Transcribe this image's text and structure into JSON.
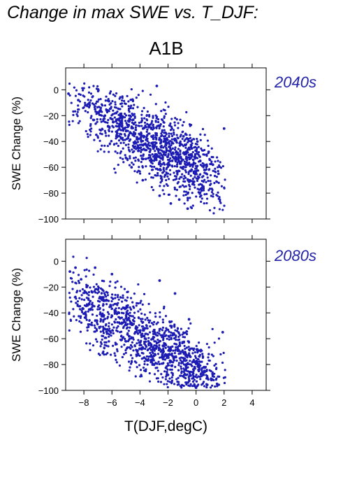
{
  "figure": {
    "title": "Change in max SWE vs. T_DJF:",
    "scenario": "A1B"
  },
  "colors": {
    "points": "#1c1cb4",
    "period_label": "#2222aa"
  },
  "chart_data": [
    {
      "type": "scatter",
      "panel_label": "2040s",
      "ylabel": "SWE Change (%)",
      "xlabel": "",
      "xlim": [
        -9.3,
        5
      ],
      "ylim": [
        -100,
        17
      ],
      "yticks": [
        0,
        -20,
        -40,
        -60,
        -80,
        -100
      ],
      "ytick_labels": [
        "0",
        "−20",
        "−40",
        "−60",
        "−80",
        "−100"
      ],
      "xticks": [
        -8,
        -6,
        -4,
        -2,
        0,
        2,
        4
      ],
      "grid": false,
      "series": [
        {
          "x": [
            -9.1,
            -8.4,
            -7.9,
            -7.6,
            -7.2,
            -7.0,
            -6.8,
            -6.5,
            -6.3,
            -6.1,
            -5.9,
            -5.7,
            -5.5,
            -5.3,
            -5.1,
            -4.9,
            -4.7,
            -4.5,
            -4.3,
            -4.1,
            -3.9,
            -3.7,
            -3.5,
            -3.3,
            -3.1,
            -2.9,
            -2.7,
            -2.5,
            -2.3,
            -2.1,
            -1.9,
            -1.7,
            -1.5,
            -1.3,
            -1.1,
            -0.9,
            -0.7,
            -0.5,
            -0.3,
            -0.1,
            0.1,
            0.3,
            0.6,
            0.9,
            1.2,
            1.6,
            2.0,
            -4.6,
            -3.8,
            -2.6,
            -1.8,
            -0.6,
            0.4,
            -3.2,
            -2.2,
            -1.2,
            -0.2,
            -2.8
          ],
          "y": [
            -3,
            -8,
            -12,
            -10,
            -15,
            -18,
            -14,
            -20,
            -16,
            -22,
            -25,
            -18,
            -28,
            -24,
            -30,
            -27,
            -33,
            -35,
            -31,
            -38,
            -40,
            -36,
            -44,
            -48,
            -42,
            -50,
            -46,
            -53,
            -40,
            -47,
            -44,
            -55,
            -38,
            -50,
            -42,
            -36,
            -48,
            -45,
            -58,
            -52,
            -40,
            -55,
            -62,
            -48,
            -58,
            -65,
            -30,
            -60,
            -70,
            -82,
            -88,
            -92,
            -78,
            -56,
            -66,
            -85,
            -72,
            3
          ]
        }
      ]
    },
    {
      "type": "scatter",
      "panel_label": "2080s",
      "ylabel": "SWE Change (%)",
      "xlabel": "T(DJF,degC)",
      "xlim": [
        -9.3,
        5
      ],
      "ylim": [
        -100,
        17
      ],
      "yticks": [
        0,
        -20,
        -40,
        -60,
        -80,
        -100
      ],
      "ytick_labels": [
        "0",
        "−20",
        "−40",
        "−60",
        "−80",
        "−100"
      ],
      "xticks": [
        -8,
        -6,
        -4,
        -2,
        0,
        2,
        4
      ],
      "xtick_labels": [
        "−8",
        "−6",
        "−4",
        "−2",
        "0",
        "2",
        "4"
      ],
      "grid": false,
      "series": [
        {
          "x": [
            -9.0,
            -8.6,
            -8.2,
            -7.8,
            -7.4,
            -7.0,
            -6.7,
            -6.4,
            -6.1,
            -5.8,
            -5.5,
            -5.2,
            -4.9,
            -4.6,
            -4.3,
            -4.0,
            -3.7,
            -3.4,
            -3.1,
            -2.8,
            -2.5,
            -2.2,
            -1.9,
            -1.6,
            -1.3,
            -1.0,
            -0.7,
            -0.4,
            -0.1,
            0.2,
            0.5,
            0.8,
            1.1,
            1.5,
            1.9,
            -5.0,
            -4.2,
            -3.0,
            -2.0,
            -1.0,
            0.0,
            -2.6,
            -1.5,
            -0.5,
            -3.6,
            -7.2,
            -6.0
          ],
          "y": [
            -8,
            -5,
            -14,
            -20,
            -24,
            -22,
            -28,
            -30,
            -34,
            -38,
            -40,
            -36,
            -45,
            -48,
            -52,
            -55,
            -58,
            -62,
            -60,
            -66,
            -70,
            -64,
            -72,
            -75,
            -68,
            -78,
            -80,
            -74,
            -82,
            -85,
            -88,
            -90,
            -92,
            -95,
            -55,
            -62,
            -70,
            -80,
            -88,
            -96,
            -98,
            -15,
            -25,
            -45,
            -85,
            -5,
            -10
          ]
        }
      ]
    }
  ]
}
